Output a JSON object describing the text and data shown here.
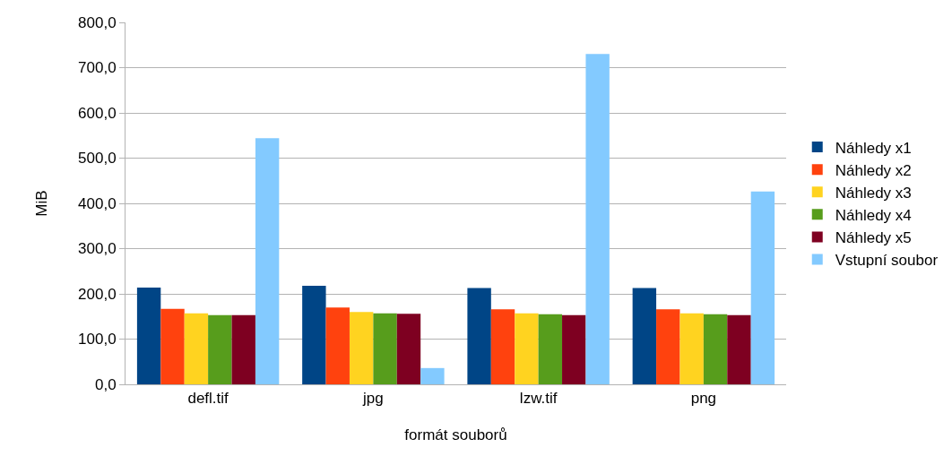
{
  "chart_data": {
    "type": "bar",
    "xlabel": "formát souborů",
    "ylabel": "MiB",
    "categories": [
      "defl.tif",
      "jpg",
      "lzw.tif",
      "png"
    ],
    "series": [
      {
        "name": "Náhledy x1",
        "color": "#004586",
        "values": [
          214,
          218,
          213,
          213
        ]
      },
      {
        "name": "Náhledy x2",
        "color": "#ff420e",
        "values": [
          167,
          170,
          166,
          166
        ]
      },
      {
        "name": "Náhledy x3",
        "color": "#ffd320",
        "values": [
          157,
          160,
          157,
          157
        ]
      },
      {
        "name": "Náhledy x4",
        "color": "#579d1c",
        "values": [
          153,
          157,
          155,
          155
        ]
      },
      {
        "name": "Náhledy x5",
        "color": "#7e0021",
        "values": [
          153,
          156,
          153,
          153
        ]
      },
      {
        "name": "Vstupní soubor",
        "color": "#83caff",
        "values": [
          544,
          36,
          730,
          426
        ]
      }
    ],
    "ylim": [
      0,
      800
    ],
    "yticks": [
      {
        "value": 0,
        "label": "0,0"
      },
      {
        "value": 100,
        "label": "100,0"
      },
      {
        "value": 200,
        "label": "200,0"
      },
      {
        "value": 300,
        "label": "300,0"
      },
      {
        "value": 400,
        "label": "400,0"
      },
      {
        "value": 500,
        "label": "500,0"
      },
      {
        "value": 600,
        "label": "600,0"
      },
      {
        "value": 700,
        "label": "700,0"
      },
      {
        "value": 800,
        "label": "800,0"
      }
    ],
    "grid": "y",
    "legend": "right"
  }
}
